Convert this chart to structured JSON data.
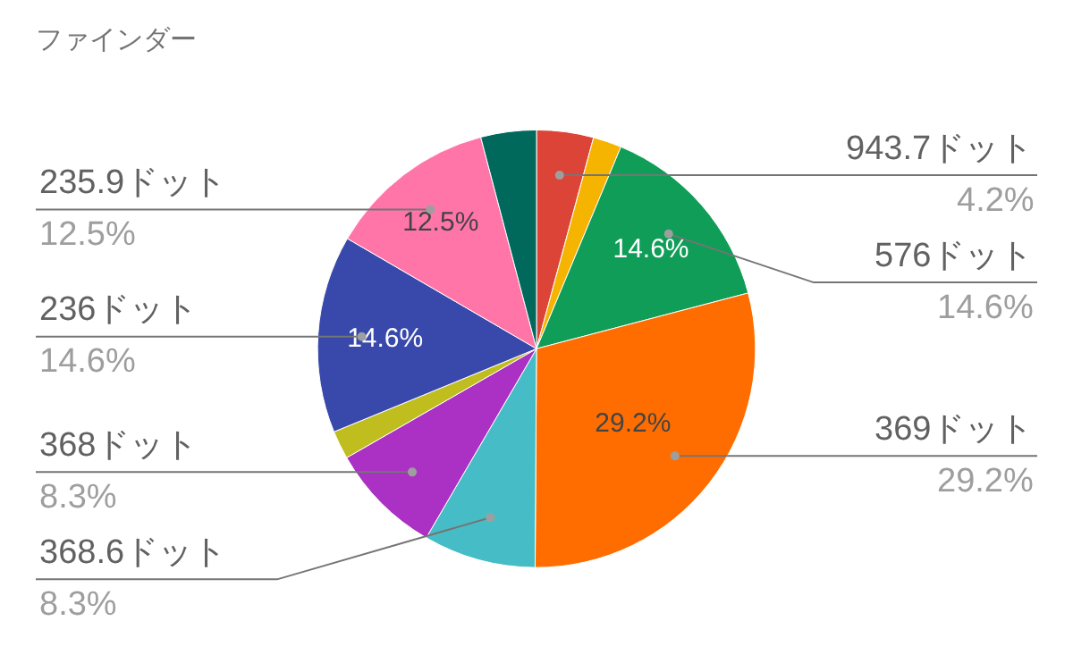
{
  "chart_data": {
    "type": "pie",
    "title": "ファインダー",
    "categories": [
      "943.7ドット",
      null,
      "576ドット",
      "369ドット",
      "368.6ドット",
      "368ドット",
      null,
      "236ドット",
      "235.9ドット",
      null
    ],
    "values": [
      4.2,
      2.1,
      14.6,
      29.2,
      8.3,
      8.3,
      2.1,
      14.6,
      12.5,
      4.1
    ],
    "colors": [
      "#db4437",
      "#f4b400",
      "#0f9d58",
      "#ff6d00",
      "#46bdc6",
      "#ab30c4",
      "#c0bd1f",
      "#3949ab",
      "#ff75a8",
      "#00695c"
    ],
    "value_labels": [
      "4.2%",
      null,
      "14.6%",
      "29.2%",
      "8.3%",
      "8.3%",
      null,
      "14.6%",
      "12.5%",
      null
    ]
  }
}
